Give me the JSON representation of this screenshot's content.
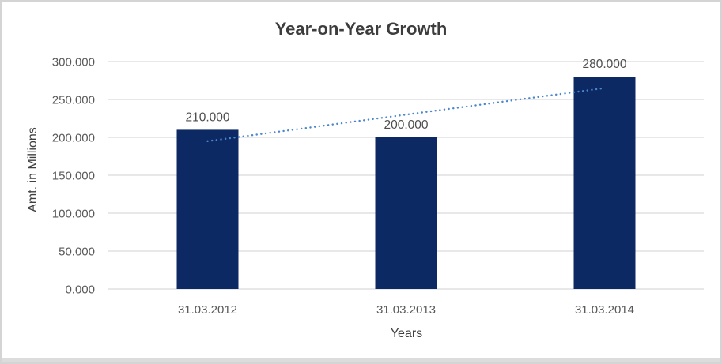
{
  "window": {
    "background": "#ffffff",
    "border_color": "#d4d4d4",
    "bottom_strip_color": "#dcdcdc"
  },
  "chart_data": {
    "type": "bar",
    "title": "Year-on-Year Growth",
    "xlabel": "Years",
    "ylabel": "Amt. in Millions",
    "categories": [
      "31.03.2012",
      "31.03.2013",
      "31.03.2014"
    ],
    "values": [
      210,
      200,
      280
    ],
    "data_labels": [
      "210.000",
      "200.000",
      "280.000"
    ],
    "ylim": [
      0,
      300
    ],
    "ytick_step": 50,
    "ytick_labels": [
      "0.000",
      "50.000",
      "100.000",
      "150.000",
      "200.000",
      "250.000",
      "300.000"
    ],
    "grid": true,
    "legend": "none",
    "bar_color": "#0d2963",
    "gridline_color": "#d9d9d9",
    "tick_label_color": "#595959",
    "data_label_color": "#4d4d4d",
    "trendline": {
      "type": "linear",
      "style": "dotted",
      "color": "#4a87cd",
      "start_value": 195,
      "end_value": 265
    }
  }
}
